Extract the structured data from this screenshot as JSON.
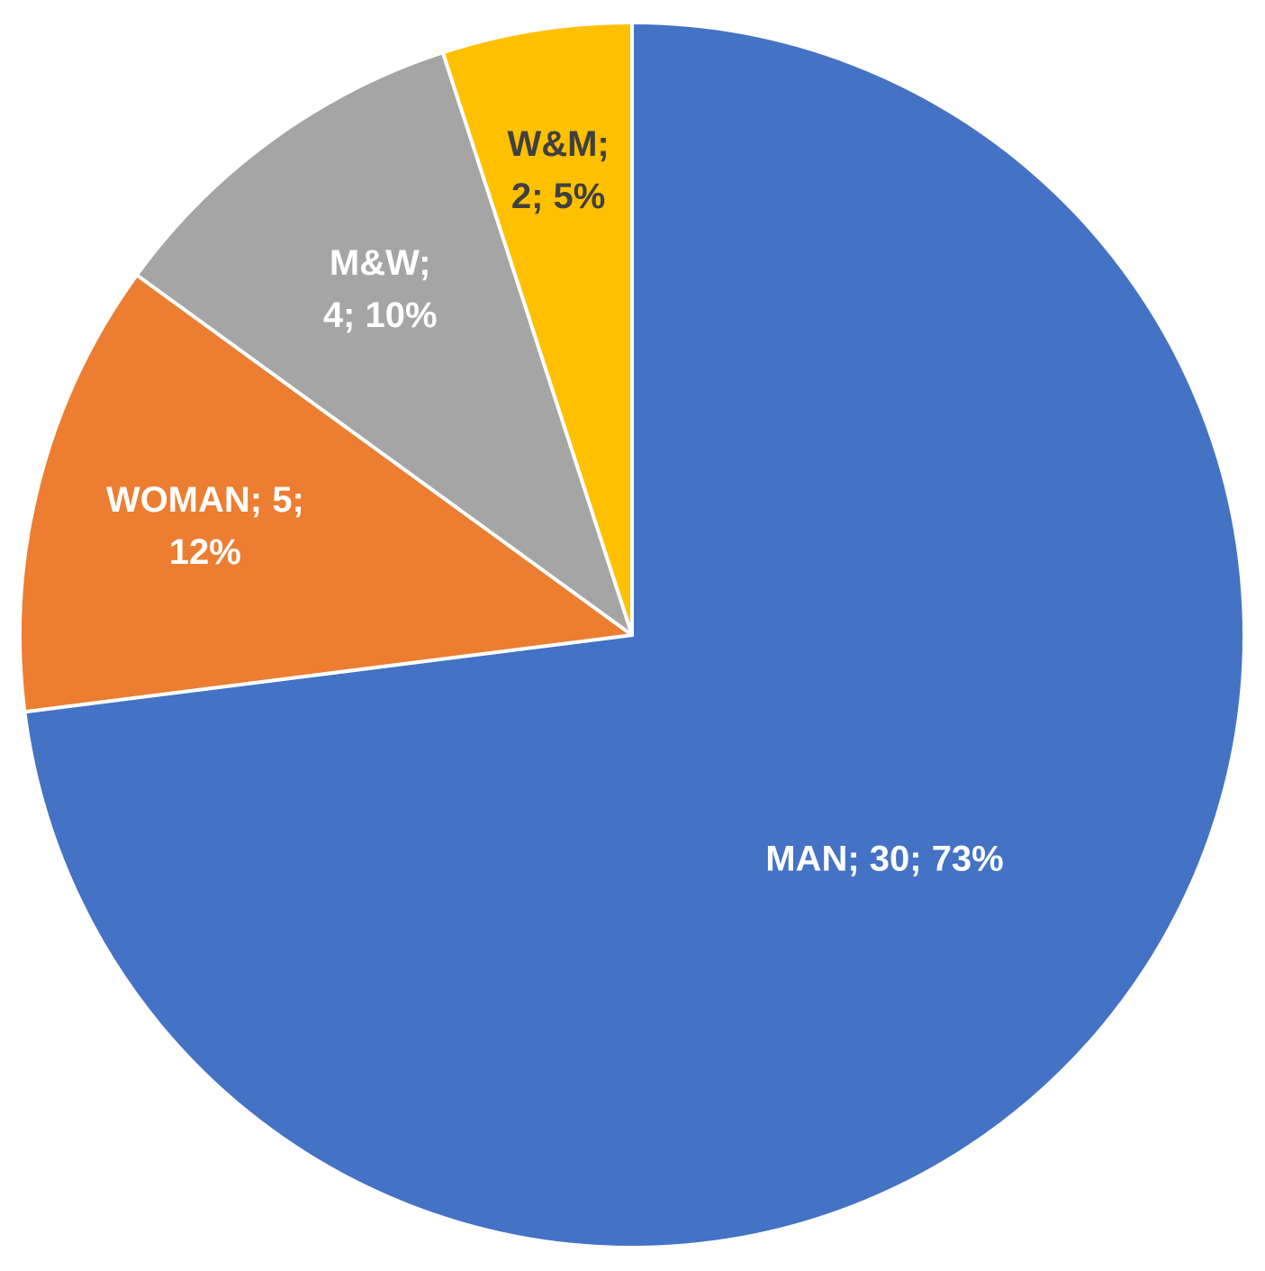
{
  "chart_data": {
    "type": "pie",
    "title": "",
    "start_angle_deg": 0,
    "direction": "clockwise",
    "slices": [
      {
        "category": "MAN",
        "value": 30,
        "percent": 73,
        "color": "#4472C4",
        "label_color": "#ffffff",
        "label_lines": [
          "MAN; 30; 73%"
        ]
      },
      {
        "category": "WOMAN",
        "value": 5,
        "percent": 12,
        "color": "#ED7D31",
        "label_color": "#ffffff",
        "label_lines": [
          "WOMAN; 5;",
          "12%"
        ]
      },
      {
        "category": "M&W",
        "value": 4,
        "percent": 10,
        "color": "#A5A5A5",
        "label_color": "#ffffff",
        "label_lines": [
          "M&W;",
          "4; 10%"
        ]
      },
      {
        "category": "W&M",
        "value": 2,
        "percent": 5,
        "color": "#FFC000",
        "label_color": "#404040",
        "label_lines": [
          "W&M;",
          "2; 5%"
        ]
      }
    ]
  }
}
